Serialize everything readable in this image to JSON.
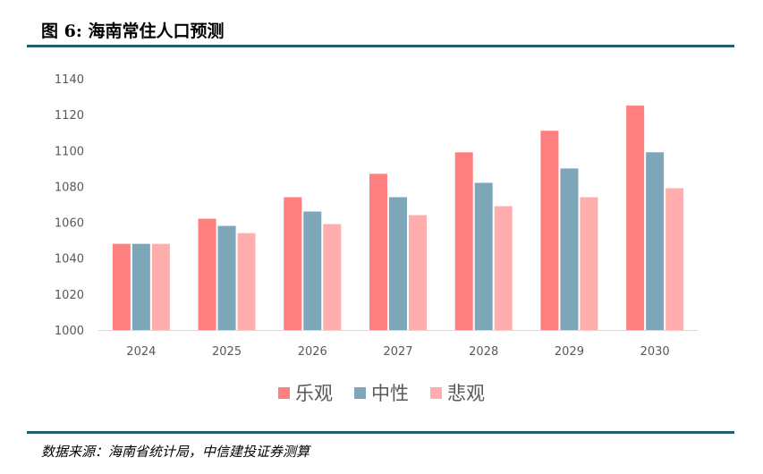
{
  "figure": {
    "label": "图 6:",
    "title": "海南常住人口预测",
    "source": "数据来源：海南省统计局，中信建投证券测算"
  },
  "colors": {
    "rule": "#1f5f72",
    "axis_text": "#595959",
    "axis_line": "#d9d9d9"
  },
  "chart_data": {
    "type": "bar",
    "title": "海南常住人口预测",
    "xlabel": "",
    "ylabel": "",
    "ylim": [
      1000,
      1140
    ],
    "yticks": [
      1000,
      1020,
      1040,
      1060,
      1080,
      1100,
      1120,
      1140
    ],
    "grid": false,
    "legend_position": "bottom",
    "categories": [
      "2024",
      "2025",
      "2026",
      "2027",
      "2028",
      "2029",
      "2030"
    ],
    "series": [
      {
        "name": "乐观",
        "color": "#ff7f7f",
        "values": [
          1048,
          1062,
          1074,
          1087,
          1099,
          1111,
          1125
        ]
      },
      {
        "name": "中性",
        "color": "#7ea6b9",
        "values": [
          1048,
          1058,
          1066,
          1074,
          1082,
          1090,
          1099
        ]
      },
      {
        "name": "悲观",
        "color": "#ffadad",
        "values": [
          1048,
          1054,
          1059,
          1064,
          1069,
          1074,
          1079
        ]
      }
    ]
  }
}
